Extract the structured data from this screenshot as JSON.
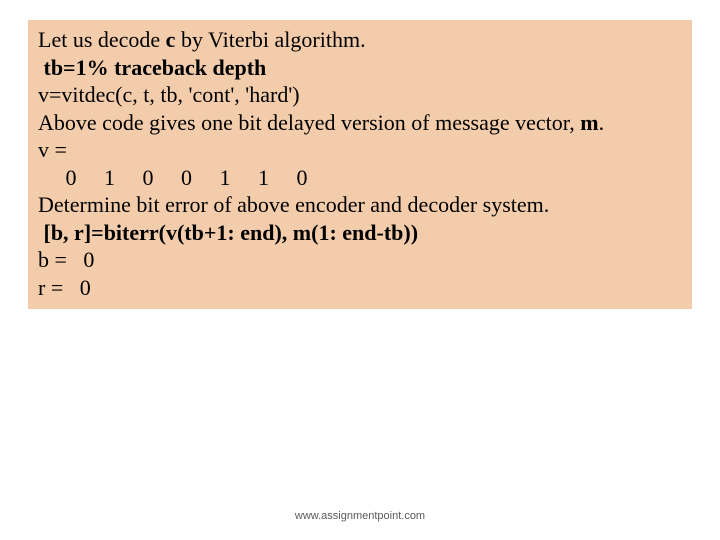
{
  "slide": {
    "background_color": "#ffffff",
    "content_box": {
      "background_color": "#f3ccab",
      "text_color": "#000000",
      "font_family": "Times New Roman",
      "font_size_pt": 17,
      "lines": {
        "l1a": "Let us decode ",
        "l1b": "c",
        "l1c": " by Viterbi algorithm.",
        "l2": " tb=1% traceback depth",
        "l3": "v=vitdec(c, t, tb, 'cont', 'hard')",
        "l4a": "Above code gives one bit delayed version of message vector, ",
        "l4b": "m",
        "l4c": ".",
        "l5": "v =",
        "l6": "     0     1     0     0     1     1     0",
        "l7": "Determine bit error of above encoder and decoder system.",
        "l8": " [b, r]=biterr(v(tb+1: end), m(1: end-tb))",
        "l9": "b =   0",
        "l10": "r =   0"
      }
    },
    "footer_text": "www.assignmentpoint.com",
    "footer": {
      "font_family": "Arial",
      "font_size_pt": 8,
      "color": "#5a5a5a"
    }
  }
}
